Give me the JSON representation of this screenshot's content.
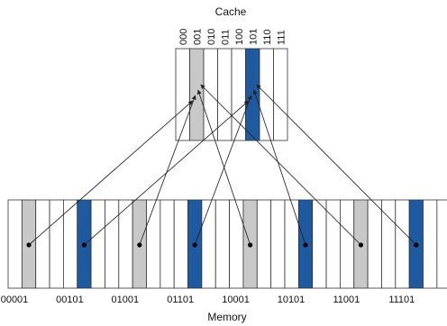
{
  "cache": {
    "title": "Cache",
    "index_labels": [
      "000",
      "001",
      "010",
      "011",
      "100",
      "101",
      "110",
      "111"
    ],
    "highlights": [
      {
        "index": 1,
        "color": "#c8c8c8"
      },
      {
        "index": 5,
        "color": "#1f5aa0"
      }
    ]
  },
  "memory": {
    "title": "Memory",
    "block_count": 32,
    "address_labels": [
      {
        "block": 0,
        "text": "00001"
      },
      {
        "block": 4,
        "text": "00101"
      },
      {
        "block": 8,
        "text": "01001"
      },
      {
        "block": 12,
        "text": "01101"
      },
      {
        "block": 16,
        "text": "10001"
      },
      {
        "block": 20,
        "text": "10101"
      },
      {
        "block": 24,
        "text": "11001"
      },
      {
        "block": 28,
        "text": "11101"
      }
    ],
    "highlights": [
      {
        "block": 1,
        "color": "#c8c8c8",
        "maps_to": 1
      },
      {
        "block": 5,
        "color": "#1f5aa0",
        "maps_to": 5
      },
      {
        "block": 9,
        "color": "#c8c8c8",
        "maps_to": 1
      },
      {
        "block": 13,
        "color": "#1f5aa0",
        "maps_to": 5
      },
      {
        "block": 17,
        "color": "#c8c8c8",
        "maps_to": 1
      },
      {
        "block": 21,
        "color": "#1f5aa0",
        "maps_to": 5
      },
      {
        "block": 25,
        "color": "#c8c8c8",
        "maps_to": 1
      },
      {
        "block": 29,
        "color": "#1f5aa0",
        "maps_to": 5
      }
    ]
  }
}
